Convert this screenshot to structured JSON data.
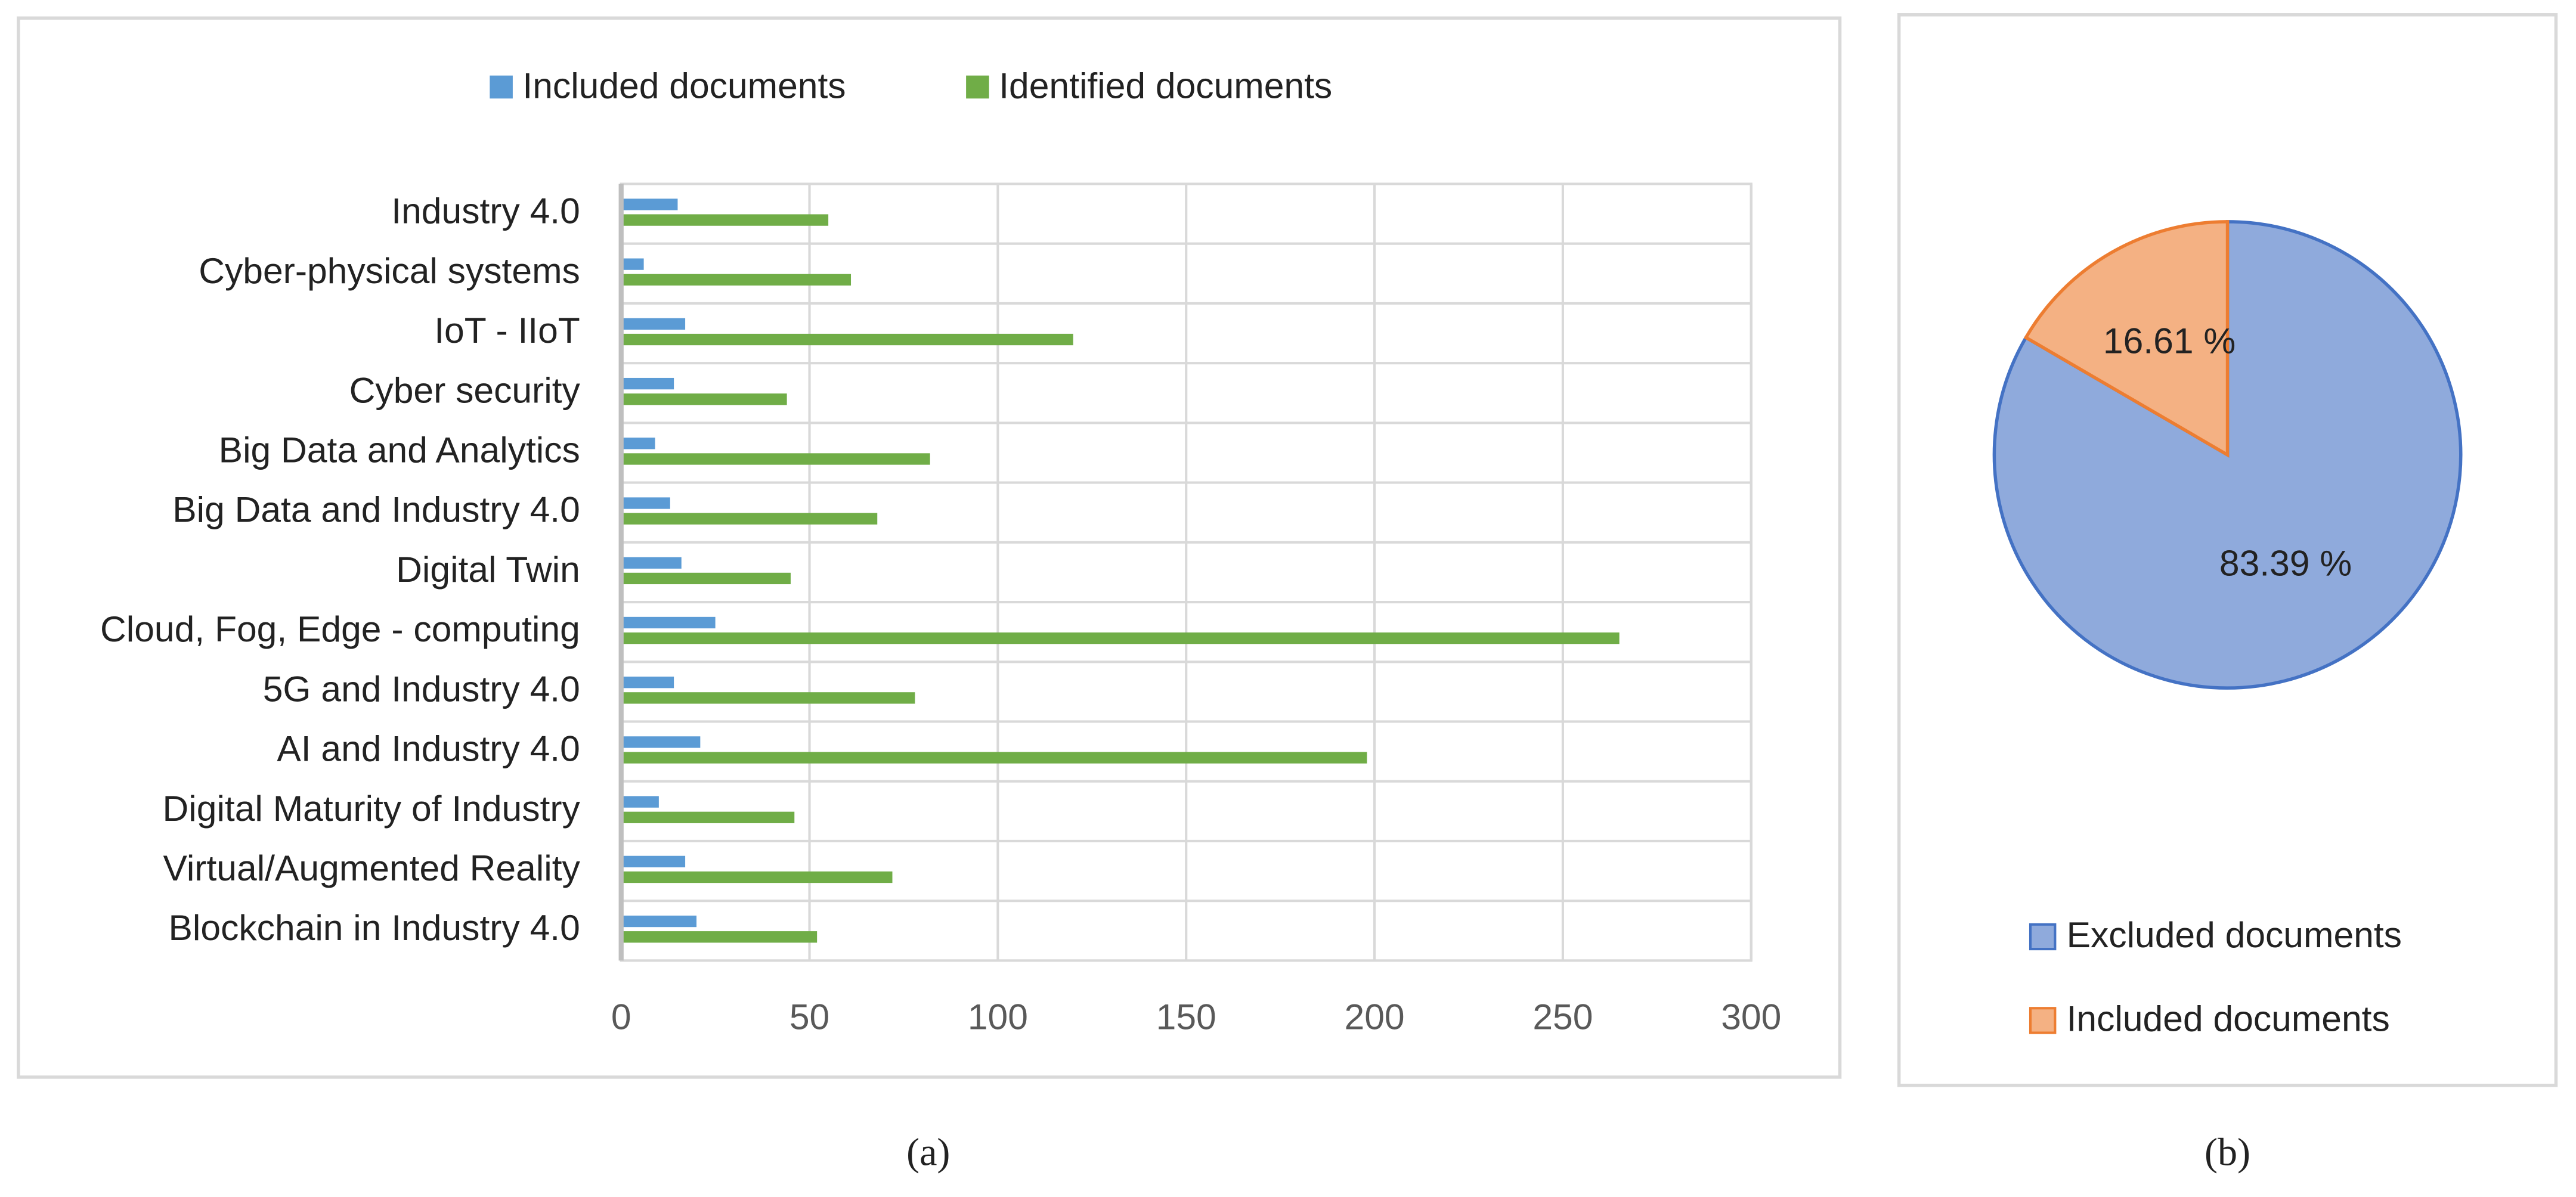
{
  "chart_data": [
    {
      "type": "barh",
      "caption": "(a)",
      "categories": [
        "Industry 4.0",
        "Cyber-physical systems",
        "IoT - IIoT",
        "Cyber security",
        "Big Data and Analytics",
        "Big Data and Industry 4.0",
        "Digital Twin",
        "Cloud, Fog, Edge - computing",
        "5G and Industry 4.0",
        "AI and Industry 4.0",
        "Digital Maturity of Industry",
        "Virtual/Augmented Reality",
        "Blockchain in Industry 4.0"
      ],
      "series": [
        {
          "name": "Included documents",
          "color": "#5b9bd5",
          "values": [
            15,
            6,
            17,
            14,
            9,
            13,
            16,
            25,
            14,
            21,
            10,
            17,
            20
          ]
        },
        {
          "name": "Identified documents",
          "color": "#70ad47",
          "values": [
            55,
            61,
            120,
            44,
            82,
            68,
            45,
            265,
            78,
            198,
            46,
            72,
            52
          ]
        }
      ],
      "xlim": [
        0,
        300
      ],
      "xticks": [
        0,
        50,
        100,
        150,
        200,
        250,
        300
      ],
      "grid": true,
      "legend": "top"
    },
    {
      "type": "pie",
      "caption": "(b)",
      "categories": [
        "Excluded documents",
        "Included documents"
      ],
      "values": [
        83.39,
        16.61
      ],
      "value_labels": [
        "83.39 %",
        "16.61 %"
      ],
      "colors": [
        "#8faadc",
        "#f4b183"
      ],
      "legend": "bottom"
    }
  ]
}
